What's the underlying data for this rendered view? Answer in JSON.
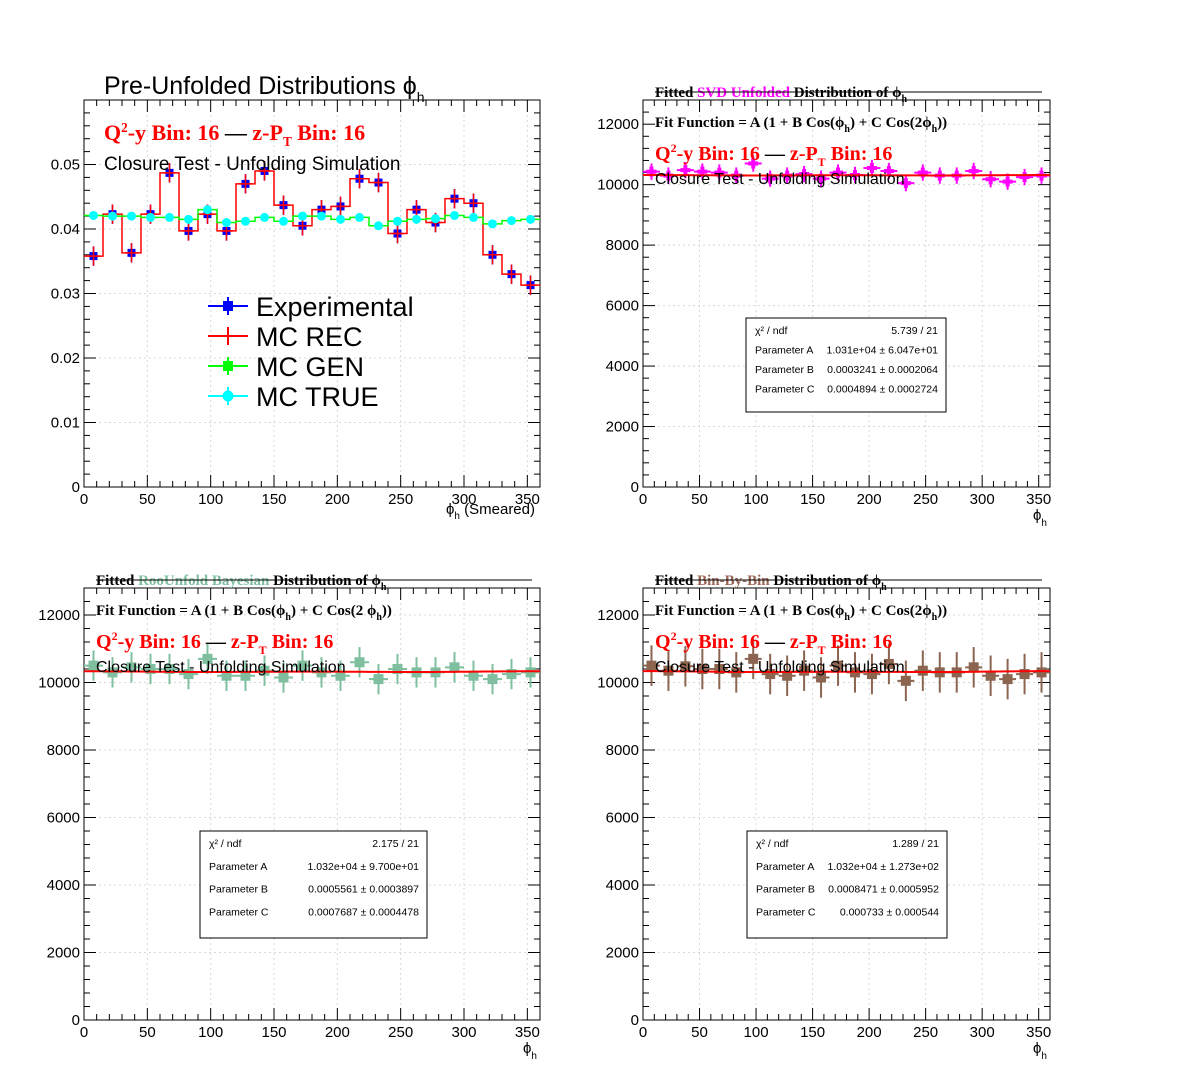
{
  "chart_data": [
    {
      "type": "line",
      "title": "Pre-Unfolded Distributions ϕ",
      "title_sub": "h",
      "bin_label": {
        "q2y": "Q",
        "q2y_sup": "2",
        "q2y_rest": "-y Bin: 16",
        "dash": "—",
        "zpt": "z-P",
        "zpt_sub": "T",
        "zpt_rest": " Bin: 16"
      },
      "closure_text": "Closure Test - Unfolding Simulation",
      "xlabel": "ϕ",
      "xlabel_sub": "h",
      "xlabel_extra": " (Smeared)",
      "xlim": [
        0,
        360
      ],
      "ylim": [
        0,
        0.06
      ],
      "x_ticks": [
        0,
        50,
        100,
        150,
        200,
        250,
        300,
        350
      ],
      "y_ticks": [
        0,
        0.01,
        0.02,
        0.03,
        0.04,
        0.05
      ],
      "y_tick_labels": [
        "0",
        "0.01",
        "0.02",
        "0.03",
        "0.04",
        "0.05"
      ],
      "grid": true,
      "legend_position": "center-left",
      "x": [
        7.5,
        22.5,
        37.5,
        52.5,
        67.5,
        82.5,
        97.5,
        112.5,
        127.5,
        142.5,
        157.5,
        172.5,
        187.5,
        202.5,
        217.5,
        232.5,
        247.5,
        262.5,
        277.5,
        292.5,
        307.5,
        322.5,
        337.5,
        352.5
      ],
      "series": [
        {
          "name": "Experimental",
          "color": "#0000ff",
          "style": "square-marker",
          "values": [
            0.0358,
            0.0423,
            0.0363,
            0.0423,
            0.0487,
            0.0397,
            0.0423,
            0.0397,
            0.047,
            0.049,
            0.0437,
            0.0405,
            0.043,
            0.0435,
            0.0478,
            0.0472,
            0.0393,
            0.043,
            0.041,
            0.0447,
            0.044,
            0.036,
            0.033,
            0.0313
          ],
          "errors": [
            0.0015,
            0.0015,
            0.0015,
            0.0015,
            0.0015,
            0.0015,
            0.0015,
            0.0015,
            0.0015,
            0.0015,
            0.0015,
            0.0015,
            0.0015,
            0.0015,
            0.0015,
            0.0015,
            0.0015,
            0.0015,
            0.0015,
            0.0015,
            0.0015,
            0.0015,
            0.0015,
            0.0015
          ]
        },
        {
          "name": "MC REC",
          "color": "#ff0000",
          "style": "step-with-errors",
          "values": [
            0.0358,
            0.0423,
            0.0363,
            0.0423,
            0.0487,
            0.0397,
            0.0423,
            0.0397,
            0.047,
            0.049,
            0.0437,
            0.0405,
            0.043,
            0.0435,
            0.0478,
            0.0472,
            0.0393,
            0.043,
            0.041,
            0.0447,
            0.044,
            0.036,
            0.033,
            0.0313
          ],
          "errors": [
            0.0015,
            0.0015,
            0.0015,
            0.0015,
            0.0015,
            0.0015,
            0.0015,
            0.0015,
            0.0015,
            0.0015,
            0.0015,
            0.0015,
            0.0015,
            0.0015,
            0.0015,
            0.0015,
            0.0015,
            0.0015,
            0.0015,
            0.0015,
            0.0015,
            0.0015,
            0.0015,
            0.0015
          ]
        },
        {
          "name": "MC GEN",
          "color": "#00ff00",
          "style": "step",
          "values": [
            0.0421,
            0.042,
            0.042,
            0.0418,
            0.0418,
            0.0415,
            0.043,
            0.041,
            0.0412,
            0.0418,
            0.0412,
            0.042,
            0.042,
            0.0415,
            0.0418,
            0.0405,
            0.0412,
            0.0415,
            0.0416,
            0.0421,
            0.0418,
            0.0408,
            0.0413,
            0.0415
          ],
          "errors": [
            0.0003,
            0.0003,
            0.0003,
            0.0003,
            0.0003,
            0.0003,
            0.0003,
            0.0003,
            0.0003,
            0.0003,
            0.0003,
            0.0003,
            0.0003,
            0.0003,
            0.0003,
            0.0003,
            0.0003,
            0.0003,
            0.0003,
            0.0003,
            0.0003,
            0.0003,
            0.0003,
            0.0003
          ]
        },
        {
          "name": "MC TRUE",
          "color": "#00ffff",
          "style": "circle-marker",
          "values": [
            0.0421,
            0.042,
            0.042,
            0.0418,
            0.0418,
            0.0415,
            0.043,
            0.041,
            0.0412,
            0.0418,
            0.0412,
            0.042,
            0.042,
            0.0415,
            0.0418,
            0.0405,
            0.0412,
            0.0415,
            0.0416,
            0.0421,
            0.0418,
            0.0408,
            0.0413,
            0.0415
          ],
          "errors": [
            0.0003,
            0.0003,
            0.0003,
            0.0003,
            0.0003,
            0.0003,
            0.0003,
            0.0003,
            0.0003,
            0.0003,
            0.0003,
            0.0003,
            0.0003,
            0.0003,
            0.0003,
            0.0003,
            0.0003,
            0.0003,
            0.0003,
            0.0003,
            0.0003,
            0.0003,
            0.0003,
            0.0003
          ]
        }
      ]
    },
    {
      "type": "scatter",
      "title_parts": {
        "pre": "Fitted ",
        "method": "SVD Unfolded",
        "post": " Distribution of ϕ",
        "sub": "h"
      },
      "method_color": "#ff00ff",
      "fit_function": "Fit Function = A (1 + B Cos(ϕ",
      "fit_function_mid": ") + C Cos(2ϕ",
      "fit_function_end": "))",
      "fit_sub": "h",
      "bin_label": {
        "q2y": "Q",
        "q2y_sup": "2",
        "q2y_rest": "-y Bin: 16",
        "dash": "—",
        "zpt": "z-P",
        "zpt_sub": "T",
        "zpt_rest": " Bin: 16"
      },
      "closure_text": "Closure Test - Unfolding Simulation",
      "xlabel": "ϕ",
      "xlabel_sub": "h",
      "xlim": [
        0,
        360
      ],
      "ylim": [
        0,
        12800
      ],
      "x_ticks": [
        0,
        50,
        100,
        150,
        200,
        250,
        300,
        350
      ],
      "y_ticks": [
        0,
        2000,
        4000,
        6000,
        8000,
        10000,
        12000
      ],
      "grid": true,
      "x": [
        7.5,
        22.5,
        37.5,
        52.5,
        67.5,
        82.5,
        97.5,
        112.5,
        127.5,
        142.5,
        157.5,
        172.5,
        187.5,
        202.5,
        217.5,
        232.5,
        247.5,
        262.5,
        277.5,
        292.5,
        307.5,
        322.5,
        337.5,
        352.5
      ],
      "series": [
        {
          "name": "SVD Unfolded",
          "color": "#ff00ff",
          "values": [
            10430,
            10300,
            10480,
            10430,
            10400,
            10300,
            10700,
            10200,
            10300,
            10350,
            10200,
            10400,
            10320,
            10550,
            10450,
            10050,
            10400,
            10300,
            10300,
            10450,
            10180,
            10100,
            10250,
            10300
          ],
          "errors": [
            270,
            270,
            270,
            270,
            270,
            270,
            270,
            270,
            270,
            270,
            270,
            270,
            270,
            270,
            270,
            270,
            270,
            270,
            270,
            270,
            270,
            270,
            270,
            270
          ]
        }
      ],
      "fit": {
        "A": 10310,
        "B": 0.0003241,
        "C": 0.0004894,
        "color": "#ff0000"
      },
      "stats": [
        {
          "label": "χ² / ndf",
          "value": "5.739 / 21"
        },
        {
          "label": "Parameter A",
          "value": "1.031e+04 ± 6.047e+01"
        },
        {
          "label": "Parameter B",
          "value": "0.0003241 ± 0.0002064"
        },
        {
          "label": "Parameter C",
          "value": "0.0004894 ± 0.0002724"
        }
      ]
    },
    {
      "type": "scatter",
      "title_parts": {
        "pre": "Fitted ",
        "method": "RooUnfold Bayesian",
        "post": " Distribution of ϕ",
        "sub": "h"
      },
      "method_color": "#7fbf9f",
      "fit_function": "Fit Function = A (1 + B Cos(ϕ",
      "fit_function_mid": ") + C Cos(2 ϕ",
      "fit_function_end": "))",
      "fit_sub": "h",
      "bin_label": {
        "q2y": "Q",
        "q2y_sup": "2",
        "q2y_rest": "-y Bin: 16",
        "dash": "—",
        "zpt": "z-P",
        "zpt_sub": "T",
        "zpt_rest": " Bin: 16"
      },
      "closure_text": "Closure Test - Unfolding Simulation",
      "xlabel": "ϕ",
      "xlabel_sub": "h",
      "xlim": [
        0,
        360
      ],
      "ylim": [
        0,
        12800
      ],
      "x_ticks": [
        0,
        50,
        100,
        150,
        200,
        250,
        300,
        350
      ],
      "y_ticks": [
        0,
        2000,
        4000,
        6000,
        8000,
        10000,
        12000
      ],
      "grid": true,
      "x": [
        7.5,
        22.5,
        37.5,
        52.5,
        67.5,
        82.5,
        97.5,
        112.5,
        127.5,
        142.5,
        157.5,
        172.5,
        187.5,
        202.5,
        217.5,
        232.5,
        247.5,
        262.5,
        277.5,
        292.5,
        307.5,
        322.5,
        337.5,
        352.5
      ],
      "series": [
        {
          "name": "RooUnfold Bayesian",
          "color": "#7fbf9f",
          "values": [
            10500,
            10300,
            10450,
            10400,
            10400,
            10250,
            10700,
            10200,
            10200,
            10350,
            10150,
            10500,
            10300,
            10200,
            10600,
            10100,
            10400,
            10300,
            10300,
            10450,
            10200,
            10100,
            10250,
            10300
          ],
          "errors": [
            450,
            450,
            450,
            450,
            450,
            450,
            450,
            450,
            450,
            450,
            450,
            450,
            450,
            450,
            450,
            450,
            450,
            450,
            450,
            450,
            450,
            450,
            450,
            450
          ]
        }
      ],
      "fit": {
        "A": 10320,
        "B": 0.0005561,
        "C": 0.0007687,
        "color": "#ff0000"
      },
      "stats": [
        {
          "label": "χ² / ndf",
          "value": "2.175 / 21"
        },
        {
          "label": "Parameter A",
          "value": "1.032e+04 ± 9.700e+01"
        },
        {
          "label": "Parameter B",
          "value": "0.0005561 ± 0.0003897"
        },
        {
          "label": "Parameter C",
          "value": "0.0007687 ± 0.0004478"
        }
      ]
    },
    {
      "type": "scatter",
      "title_parts": {
        "pre": "Fitted ",
        "method": "Bin-By-Bin",
        "post": " Distribution of ϕ",
        "sub": "h"
      },
      "method_color": "#996655",
      "fit_function": "Fit Function = A (1 + B Cos(ϕ",
      "fit_function_mid": ") + C Cos(2ϕ",
      "fit_function_end": "))",
      "fit_sub": "h",
      "bin_label": {
        "q2y": "Q",
        "q2y_sup": "2",
        "q2y_rest": "-y Bin: 16",
        "dash": "—",
        "zpt": "z-P",
        "zpt_sub": "T",
        "zpt_rest": " Bin: 16"
      },
      "closure_text": "Closure Test - Unfolding Simulation",
      "xlabel": "ϕ",
      "xlabel_sub": "h",
      "xlim": [
        0,
        360
      ],
      "ylim": [
        0,
        12800
      ],
      "x_ticks": [
        0,
        50,
        100,
        150,
        200,
        250,
        300,
        350
      ],
      "y_ticks": [
        0,
        2000,
        4000,
        6000,
        8000,
        10000,
        12000
      ],
      "grid": true,
      "x": [
        7.5,
        22.5,
        37.5,
        52.5,
        67.5,
        82.5,
        97.5,
        112.5,
        127.5,
        142.5,
        157.5,
        172.5,
        187.5,
        202.5,
        217.5,
        232.5,
        247.5,
        262.5,
        277.5,
        292.5,
        307.5,
        322.5,
        337.5,
        352.5
      ],
      "series": [
        {
          "name": "Bin-By-Bin",
          "color": "#8b6550",
          "values": [
            10500,
            10350,
            10480,
            10400,
            10400,
            10300,
            10700,
            10250,
            10200,
            10350,
            10150,
            10500,
            10300,
            10250,
            10550,
            10050,
            10350,
            10300,
            10300,
            10450,
            10200,
            10100,
            10250,
            10300
          ],
          "errors": [
            600,
            600,
            600,
            600,
            600,
            600,
            600,
            600,
            600,
            600,
            600,
            600,
            600,
            600,
            600,
            600,
            600,
            600,
            600,
            600,
            600,
            600,
            600,
            600
          ]
        }
      ],
      "fit": {
        "A": 10320,
        "B": 0.0008471,
        "C": 0.000733,
        "color": "#ff0000"
      },
      "stats": [
        {
          "label": "χ² / ndf",
          "value": "1.289 / 21"
        },
        {
          "label": "Parameter A",
          "value": "1.032e+04 ± 1.273e+02"
        },
        {
          "label": "Parameter B",
          "value": "0.0008471 ± 0.0005952"
        },
        {
          "label": "Parameter C",
          "value": "0.000733 ± 0.000544"
        }
      ]
    }
  ]
}
